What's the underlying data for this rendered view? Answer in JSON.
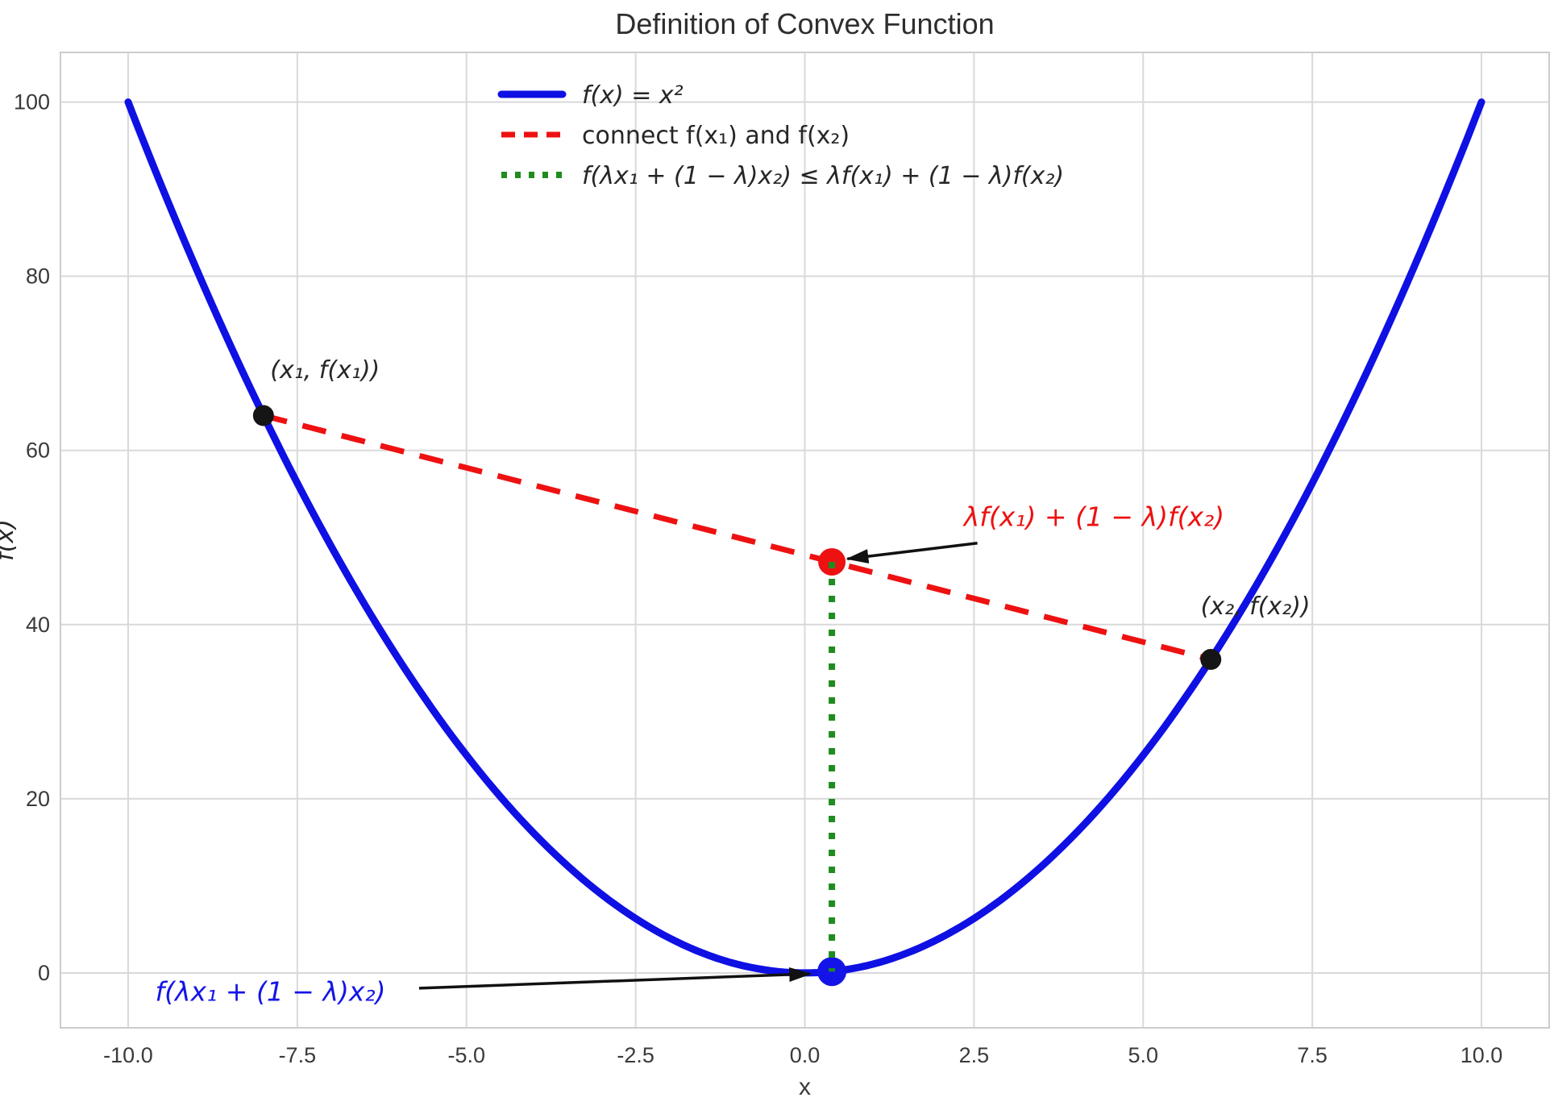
{
  "figure": {
    "title": "Definition of Convex Function",
    "background_color": "#ffffff",
    "grid_color": "#d9d9d9",
    "border_color": "#cccccc"
  },
  "chart_data": {
    "type": "line",
    "title": "Definition of Convex Function",
    "xlabel": "x",
    "ylabel": "f(x)",
    "xlim": [
      -11,
      11
    ],
    "ylim": [
      -6.3,
      105.7
    ],
    "x_ticks": [
      -10.0,
      -7.5,
      -5.0,
      -2.5,
      0.0,
      2.5,
      5.0,
      7.5,
      10.0
    ],
    "x_tick_labels": [
      "-10.0",
      "-7.5",
      "-5.0",
      "-2.5",
      "0.0",
      "2.5",
      "5.0",
      "7.5",
      "10.0"
    ],
    "y_ticks": [
      0,
      20,
      40,
      60,
      80,
      100
    ],
    "y_tick_labels": [
      "0",
      "20",
      "40",
      "60",
      "80",
      "100"
    ],
    "grid": true,
    "legend_position": "upper center",
    "legend_frame": false,
    "function": "f(x) = x^2",
    "x1": -8,
    "x2": 6,
    "f_x1": 64,
    "f_x2": 36,
    "lambda": 0.4,
    "chord_point": [
      0.4,
      47.2
    ],
    "curve_point": [
      0.4,
      0.16
    ],
    "series": [
      {
        "name": "f(x) = x²",
        "kind": "curve",
        "fn": "x^2",
        "x_range": [
          -10,
          10
        ],
        "color": "#0f10e3",
        "style": "solid",
        "width": 9,
        "italic": true
      },
      {
        "name": "connect f(x₁) and f(x₂)",
        "kind": "segment",
        "points": [
          [
            -8,
            64
          ],
          [
            6,
            36
          ]
        ],
        "color": "#ee1111",
        "style": "dashed",
        "width": 7,
        "italic": false
      },
      {
        "name": "f(λx₁ + (1 − λ)x₂) ≤ λf(x₁) + (1 − λ)f(x₂)",
        "kind": "segment",
        "points": [
          [
            0.4,
            47.2
          ],
          [
            0.4,
            0.16
          ]
        ],
        "color": "#1f8c1f",
        "style": "dotted",
        "width": 8,
        "italic": true
      }
    ],
    "points": [
      {
        "name": "point-x1",
        "xy": [
          -8,
          64
        ],
        "color": "#151515",
        "r": 13,
        "label": "(x₁, f(x₁))",
        "label_xy": [
          -7.9,
          68.3
        ],
        "label_color": "#262626"
      },
      {
        "name": "point-x2",
        "xy": [
          6,
          36
        ],
        "color": "#151515",
        "r": 13,
        "label": "(x₂, f(x₂))",
        "label_xy": [
          5.85,
          41.2
        ],
        "label_color": "#262626"
      },
      {
        "name": "point-chord-combination",
        "xy": [
          0.4,
          47.2
        ],
        "color": "#ee1111",
        "r": 17,
        "label": null
      },
      {
        "name": "point-curve-value",
        "xy": [
          0.4,
          0.16
        ],
        "color": "#1414e8",
        "r": 18,
        "label": null
      }
    ],
    "annotations": [
      {
        "name": "annotation-chord-value",
        "text": "λf(x₁) + (1 − λ)f(x₂)",
        "color": "#ee1111",
        "text_xy": [
          2.35,
          51.3
        ],
        "arrow_from": [
          2.55,
          49.35
        ],
        "arrow_to": [
          0.63,
          47.55
        ],
        "arrow_color": "#111111"
      },
      {
        "name": "annotation-curve-value",
        "text": "f(λx₁ + (1 − λ)x₂)",
        "color": "#1414e8",
        "text_xy": [
          -9.6,
          -3.2
        ],
        "arrow_from": [
          -5.7,
          -1.75
        ],
        "arrow_to": [
          0.08,
          -0.1
        ],
        "arrow_color": "#111111"
      }
    ]
  }
}
